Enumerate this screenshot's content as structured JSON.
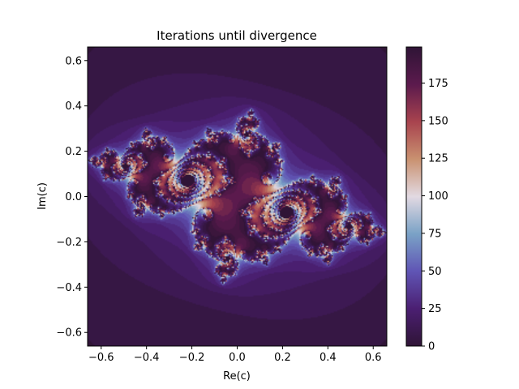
{
  "chart_data": {
    "type": "heatmap",
    "title": "Iterations until divergence",
    "xlabel": "Re(c)",
    "ylabel": "Im(c)",
    "xlim": [
      -0.66,
      0.66
    ],
    "ylim": [
      -0.66,
      0.66
    ],
    "x_ticks": [
      -0.6,
      -0.4,
      -0.2,
      0.0,
      0.2,
      0.4,
      0.6
    ],
    "x_tick_labels": [
      "−0.6",
      "−0.4",
      "−0.2",
      "0.0",
      "0.2",
      "0.4",
      "0.6"
    ],
    "y_ticks": [
      -0.6,
      -0.4,
      -0.2,
      0.0,
      0.2,
      0.4,
      0.6
    ],
    "y_tick_labels": [
      "−0.6",
      "−0.4",
      "−0.2",
      "0.0",
      "0.2",
      "0.4",
      "0.6"
    ],
    "colorbar": {
      "range": [
        0,
        199
      ],
      "ticks": [
        0,
        25,
        50,
        75,
        100,
        125,
        150,
        175
      ],
      "tick_labels": [
        "0",
        "25",
        "50",
        "75",
        "100",
        "125",
        "150",
        "175"
      ],
      "colormap": "twilight_shifted"
    },
    "colormap_stops": [
      "#2f1436",
      "#4b1f72",
      "#6055b5",
      "#7aa2c6",
      "#e2d9e2",
      "#c99170",
      "#a8434e",
      "#5b1a4d",
      "#2f1436"
    ],
    "grid": false,
    "dark_regions_note_centers": [
      [
        -0.5,
        -0.1
      ],
      [
        0.45,
        0.08
      ],
      [
        0.05,
        0.62
      ],
      [
        -0.05,
        -0.62
      ]
    ]
  }
}
